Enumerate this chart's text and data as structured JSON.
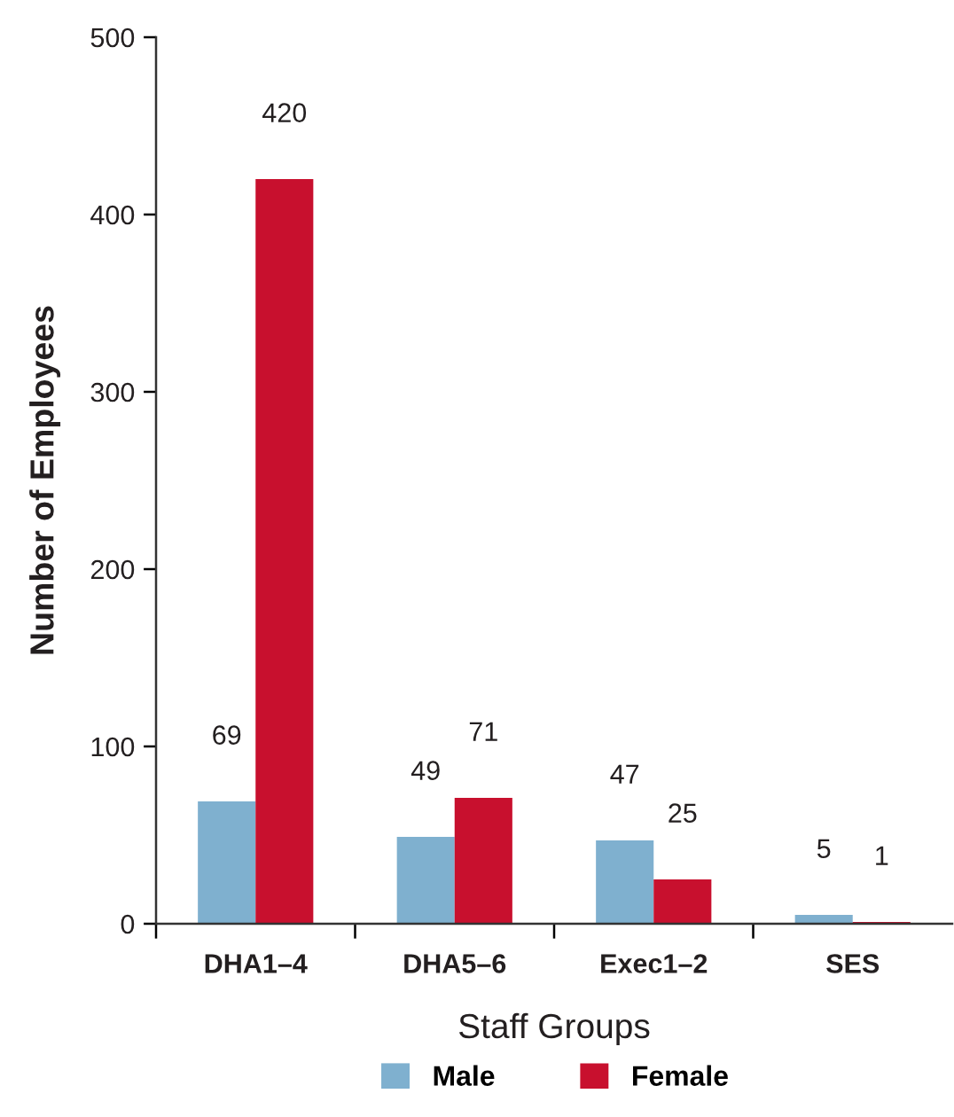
{
  "chart_data": {
    "type": "bar",
    "xlabel": "Staff Groups",
    "ylabel": "Number of Employees",
    "categories": [
      "DHA1–4",
      "DHA5–6",
      "Exec1–2",
      "SES"
    ],
    "series": [
      {
        "name": "Male",
        "color": "#7fb0cf",
        "values": [
          69,
          49,
          47,
          5
        ]
      },
      {
        "name": "Female",
        "color": "#c8102e",
        "values": [
          420,
          71,
          25,
          1
        ]
      }
    ],
    "ylim": [
      0,
      500
    ],
    "yticks": [
      0,
      100,
      200,
      300,
      400,
      500
    ],
    "data_labels": true,
    "legend": "bottom"
  }
}
